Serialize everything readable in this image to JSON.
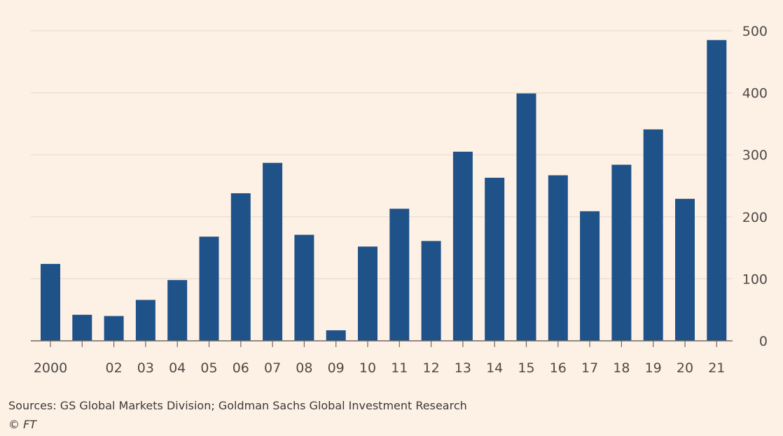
{
  "chart_data": {
    "type": "bar",
    "categories": [
      "2000",
      "",
      "02",
      "03",
      "04",
      "05",
      "06",
      "07",
      "08",
      "09",
      "10",
      "11",
      "12",
      "13",
      "14",
      "15",
      "16",
      "17",
      "18",
      "19",
      "20",
      "21"
    ],
    "values": [
      124,
      42,
      40,
      66,
      98,
      168,
      238,
      287,
      171,
      17,
      152,
      213,
      161,
      305,
      263,
      399,
      267,
      209,
      284,
      341,
      229,
      485
    ],
    "ylim": [
      0,
      500
    ],
    "yticks": [
      0,
      100,
      200,
      300,
      400,
      500
    ],
    "y_axis_side": "right",
    "grid": true,
    "title": "",
    "xlabel": "",
    "ylabel": "",
    "bar_color": "#1f5289"
  },
  "footer": {
    "sources": "Sources: GS Global Markets Division; Goldman Sachs Global Investment Research",
    "credit": "© FT"
  },
  "colors": {
    "background": "#fdf1e6",
    "gridline": "#e8dcd1",
    "axis": "#6e6863",
    "bar": "#1f5289"
  }
}
